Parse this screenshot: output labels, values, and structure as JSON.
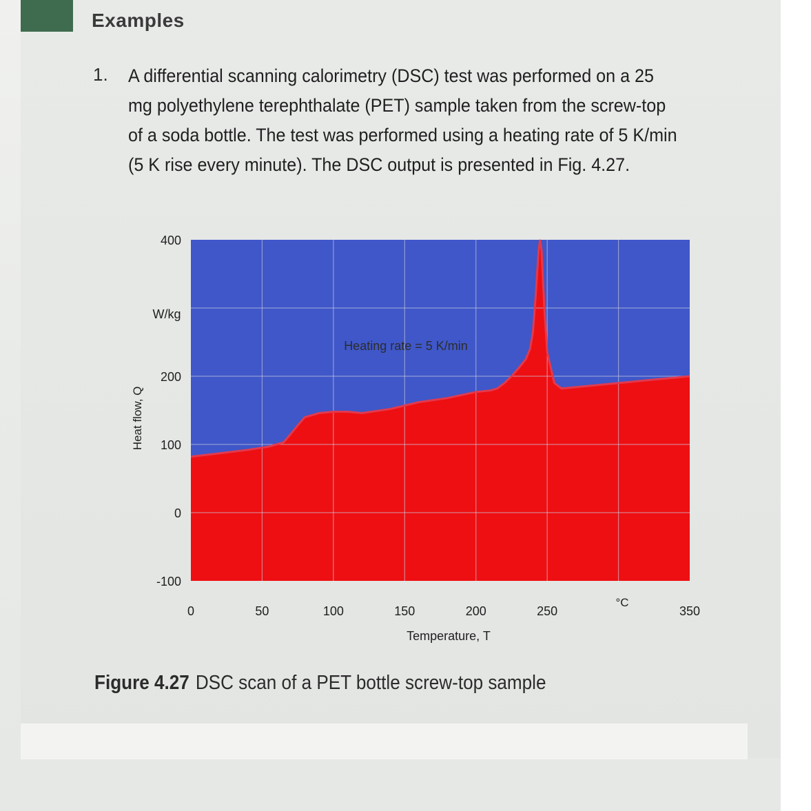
{
  "section": {
    "heading": "Examples"
  },
  "problem": {
    "number": "1.",
    "text": "A differential scanning calorimetry (DSC) test was performed on a 25 mg polyethylene terephthalate (PET) sample taken from the screw-top of a soda bottle. The test was performed using a heating rate of 5 K/min (5 K rise every minute). The DSC output is presented in Fig. 4.27."
  },
  "figure": {
    "label": "Figure 4.27",
    "caption": "DSC scan of a PET bottle screw-top sample"
  },
  "colors": {
    "fill_below_curve": "#ee0f12",
    "background_above_curve": "#3f57c8",
    "curve": "#e13a4e",
    "page": "#e6e8e6",
    "section_tab": "#3f6b4f"
  },
  "chart_data": {
    "type": "area",
    "title": "",
    "xlabel": "Temperature, T",
    "x_unit_label": "°C",
    "ylabel": "Heat flow, Q",
    "y_unit_label": "W/kg",
    "annotation": "Heating rate = 5 K/min",
    "xlim": [
      0,
      350
    ],
    "ylim": [
      -100,
      400
    ],
    "x_ticks": [
      "0",
      "50",
      "100",
      "150",
      "200",
      "250",
      "350"
    ],
    "y_ticks": [
      "-100",
      "0",
      "100",
      "200",
      "400"
    ],
    "grid": true,
    "series": [
      {
        "x": [
          0,
          20,
          40,
          55,
          65,
          70,
          75,
          80,
          90,
          100,
          110,
          120,
          140,
          160,
          180,
          200,
          210,
          215,
          220,
          225,
          230,
          235,
          238,
          240,
          242,
          244,
          245,
          246,
          248,
          250,
          255,
          260,
          280,
          300,
          320,
          350
        ],
        "y": [
          82,
          87,
          92,
          97,
          103,
          115,
          128,
          140,
          146,
          148,
          148,
          146,
          152,
          162,
          168,
          177,
          179,
          182,
          190,
          200,
          212,
          225,
          240,
          265,
          320,
          385,
          400,
          385,
          300,
          235,
          190,
          182,
          186,
          190,
          194,
          200
        ]
      }
    ]
  }
}
